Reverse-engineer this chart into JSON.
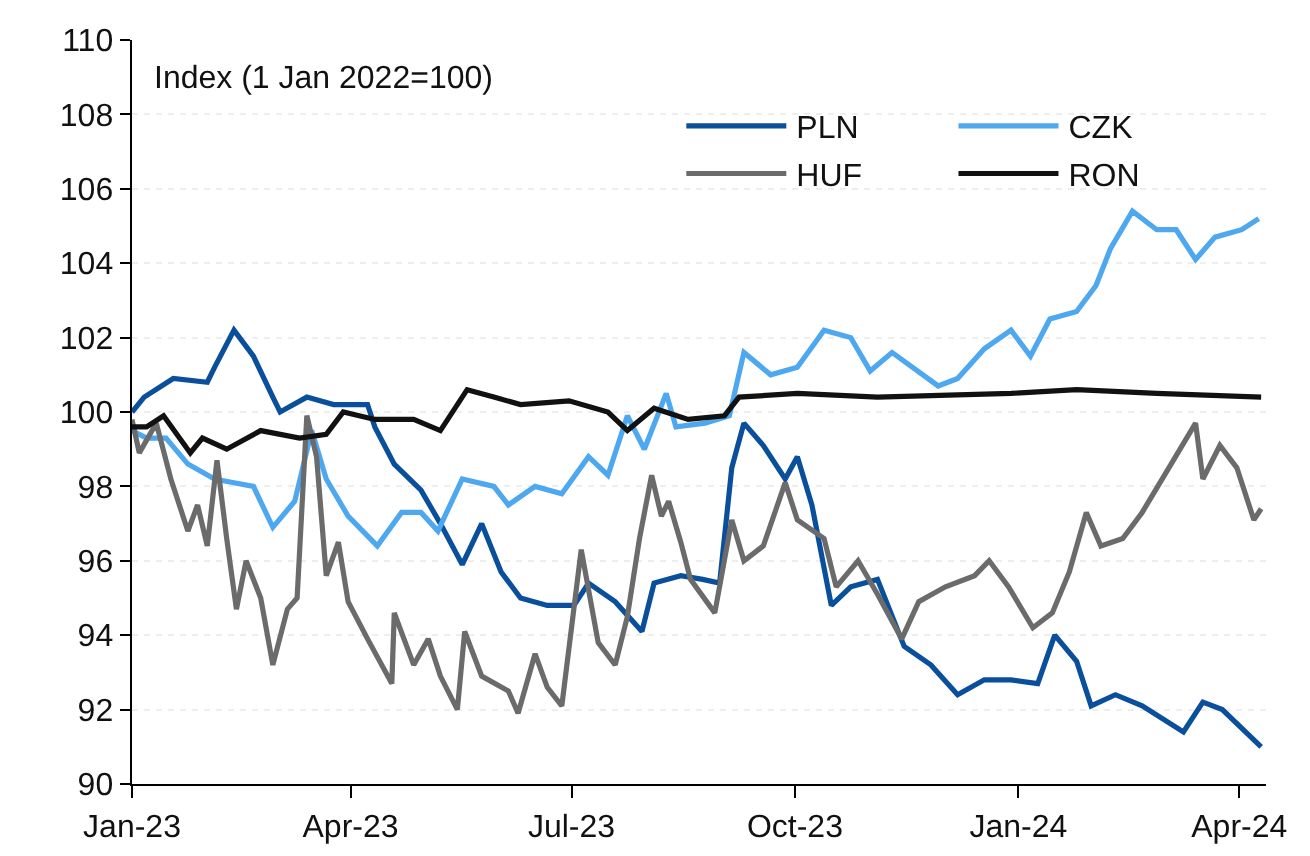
{
  "chart_data": {
    "type": "line",
    "ylabel": "Index (1 Jan 2022=100)",
    "legend": "top right",
    "grid": "y",
    "line_style": "solid",
    "xlim": [
      "2023-01-01",
      "2024-04-12"
    ],
    "xticks": [
      {
        "value": "2023-01-01",
        "label": "Jan-23"
      },
      {
        "value": "2023-04-01",
        "label": "Apr-23"
      },
      {
        "value": "2023-07-01",
        "label": "Jul-23"
      },
      {
        "value": "2023-10-01",
        "label": "Oct-23"
      },
      {
        "value": "2024-01-01",
        "label": "Jan-24"
      },
      {
        "value": "2024-04-01",
        "label": "Apr-24"
      }
    ],
    "ylim": [
      90,
      110
    ],
    "yticks": [
      90,
      92,
      94,
      96,
      98,
      100,
      102,
      104,
      106,
      108,
      110
    ],
    "series": [
      {
        "name": "PLN",
        "color": "#0a4f9c",
        "x": [
          "2023-01-01",
          "2023-01-06",
          "2023-01-18",
          "2023-02-01",
          "2023-02-04",
          "2023-02-12",
          "2023-02-20",
          "2023-02-28",
          "2023-03-03",
          "2023-03-14",
          "2023-03-25",
          "2023-04-08",
          "2023-04-11",
          "2023-04-19",
          "2023-04-30",
          "2023-05-08",
          "2023-05-17",
          "2023-05-25",
          "2023-06-02",
          "2023-06-10",
          "2023-06-21",
          "2023-07-02",
          "2023-07-08",
          "2023-07-19",
          "2023-07-30",
          "2023-08-04",
          "2023-08-15",
          "2023-08-24",
          "2023-08-31",
          "2023-09-05",
          "2023-09-10",
          "2023-09-18",
          "2023-09-27",
          "2023-10-02",
          "2023-10-08",
          "2023-10-16",
          "2023-10-24",
          "2023-11-04",
          "2023-11-15",
          "2023-11-26",
          "2023-12-07",
          "2023-12-18",
          "2023-12-29",
          "2024-01-09",
          "2024-01-16",
          "2024-01-25",
          "2024-01-31",
          "2024-02-10",
          "2024-02-21",
          "2024-03-09",
          "2024-03-17",
          "2024-03-25",
          "2024-04-10"
        ],
        "values": [
          100,
          100.4,
          100.9,
          100.8,
          101.2,
          102.2,
          101.5,
          100.4,
          100,
          100.4,
          100.2,
          100.2,
          99.6,
          98.6,
          97.9,
          97.0,
          95.9,
          97.0,
          95.7,
          95.0,
          94.8,
          94.8,
          95.4,
          94.9,
          94.1,
          95.4,
          95.6,
          95.5,
          95.4,
          98.5,
          99.7,
          99.1,
          98.2,
          98.8,
          97.5,
          94.8,
          95.3,
          95.5,
          93.7,
          93.2,
          92.4,
          92.8,
          92.8,
          92.7,
          94.0,
          93.3,
          92.1,
          92.4,
          92.1,
          91.4,
          92.2,
          92.0,
          91.0
        ]
      },
      {
        "name": "CZK",
        "color": "#4da8f0",
        "x": [
          "2023-01-01",
          "2023-01-07",
          "2023-01-15",
          "2023-01-24",
          "2023-02-04",
          "2023-02-12",
          "2023-02-20",
          "2023-02-28",
          "2023-03-09",
          "2023-03-16",
          "2023-03-22",
          "2023-03-31",
          "2023-04-12",
          "2023-04-22",
          "2023-04-30",
          "2023-05-07",
          "2023-05-17",
          "2023-05-30",
          "2023-06-05",
          "2023-06-16",
          "2023-06-27",
          "2023-07-08",
          "2023-07-16",
          "2023-07-24",
          "2023-07-31",
          "2023-08-09",
          "2023-08-13",
          "2023-08-25",
          "2023-09-04",
          "2023-09-10",
          "2023-09-21",
          "2023-10-02",
          "2023-10-13",
          "2023-10-24",
          "2023-11-01",
          "2023-11-10",
          "2023-11-29",
          "2023-12-07",
          "2023-12-18",
          "2023-12-29",
          "2024-01-06",
          "2024-01-14",
          "2024-01-25",
          "2024-02-02",
          "2024-02-08",
          "2024-02-17",
          "2024-02-27",
          "2024-03-06",
          "2024-03-14",
          "2024-03-22",
          "2024-04-02",
          "2024-04-09"
        ],
        "values": [
          99.5,
          99.3,
          99.3,
          98.6,
          98.2,
          98.1,
          98.0,
          96.9,
          97.6,
          99.5,
          98.2,
          97.2,
          96.4,
          97.3,
          97.3,
          96.8,
          98.2,
          98.0,
          97.5,
          98.0,
          97.8,
          98.8,
          98.3,
          99.9,
          99.0,
          100.5,
          99.6,
          99.7,
          99.9,
          101.6,
          101.0,
          101.2,
          102.2,
          102.0,
          101.1,
          101.6,
          100.7,
          100.9,
          101.7,
          102.2,
          101.5,
          102.5,
          102.7,
          103.4,
          104.4,
          105.4,
          104.9,
          104.9,
          104.1,
          104.7,
          104.9,
          105.2
        ]
      },
      {
        "name": "HUF",
        "color": "#6b6b6b",
        "x": [
          "2023-01-01",
          "2023-01-04",
          "2023-01-11",
          "2023-01-17",
          "2023-01-24",
          "2023-01-28",
          "2023-02-01",
          "2023-02-05",
          "2023-02-09",
          "2023-02-13",
          "2023-02-17",
          "2023-02-23",
          "2023-02-28",
          "2023-03-06",
          "2023-03-10",
          "2023-03-14",
          "2023-03-18",
          "2023-03-22",
          "2023-03-27",
          "2023-03-31",
          "2023-04-08",
          "2023-04-18",
          "2023-04-19",
          "2023-04-27",
          "2023-05-03",
          "2023-05-08",
          "2023-05-15",
          "2023-05-18",
          "2023-05-25",
          "2023-06-05",
          "2023-06-09",
          "2023-06-16",
          "2023-06-21",
          "2023-06-27",
          "2023-07-05",
          "2023-07-12",
          "2023-07-19",
          "2023-07-24",
          "2023-07-29",
          "2023-08-03",
          "2023-08-07",
          "2023-08-10",
          "2023-08-15",
          "2023-08-19",
          "2023-08-29",
          "2023-09-05",
          "2023-09-10",
          "2023-09-18",
          "2023-09-27",
          "2023-10-02",
          "2023-10-13",
          "2023-10-18",
          "2023-10-27",
          "2023-11-04",
          "2023-11-14",
          "2023-11-21",
          "2023-12-02",
          "2023-12-14",
          "2023-12-20",
          "2023-12-28",
          "2024-01-07",
          "2024-01-15",
          "2024-01-22",
          "2024-01-29",
          "2024-02-04",
          "2024-02-13",
          "2024-02-21",
          "2024-03-03",
          "2024-03-14",
          "2024-03-17",
          "2024-03-24",
          "2024-03-31",
          "2024-04-07",
          "2024-04-10"
        ],
        "values": [
          99.8,
          98.9,
          99.7,
          98.2,
          96.8,
          97.5,
          96.4,
          98.7,
          96.6,
          94.7,
          96.0,
          95.0,
          93.2,
          94.7,
          95.0,
          99.9,
          98.8,
          95.6,
          96.5,
          94.9,
          93.9,
          92.7,
          94.6,
          93.2,
          93.9,
          92.9,
          92.0,
          94.1,
          92.9,
          92.5,
          91.9,
          93.5,
          92.6,
          92.1,
          96.3,
          93.8,
          93.2,
          94.5,
          96.6,
          98.3,
          97.2,
          97.6,
          96.5,
          95.5,
          94.6,
          97.1,
          96.0,
          96.4,
          98.1,
          97.1,
          96.6,
          95.3,
          96.0,
          95.1,
          93.9,
          94.9,
          95.3,
          95.6,
          96.0,
          95.3,
          94.2,
          94.6,
          95.7,
          97.3,
          96.4,
          96.6,
          97.3,
          98.5,
          99.7,
          98.2,
          99.1,
          98.5,
          97.1,
          97.4
        ]
      },
      {
        "name": "RON",
        "color": "#111111",
        "x": [
          "2023-01-01",
          "2023-01-07",
          "2023-01-14",
          "2023-01-25",
          "2023-01-30",
          "2023-02-09",
          "2023-02-23",
          "2023-03-11",
          "2023-03-22",
          "2023-03-29",
          "2023-04-11",
          "2023-04-27",
          "2023-05-08",
          "2023-05-19",
          "2023-05-30",
          "2023-06-10",
          "2023-06-30",
          "2023-07-16",
          "2023-07-24",
          "2023-08-04",
          "2023-08-18",
          "2023-09-02",
          "2023-09-08",
          "2023-10-02",
          "2023-11-04",
          "2023-12-29",
          "2024-01-25",
          "2024-02-27",
          "2024-04-10"
        ],
        "values": [
          99.6,
          99.6,
          99.9,
          98.9,
          99.3,
          99.0,
          99.5,
          99.3,
          99.4,
          100.0,
          99.8,
          99.8,
          99.5,
          100.6,
          100.4,
          100.2,
          100.3,
          100.0,
          99.5,
          100.1,
          99.8,
          99.9,
          100.4,
          100.5,
          100.4,
          100.5,
          100.6,
          100.5,
          100.4
        ]
      }
    ]
  }
}
